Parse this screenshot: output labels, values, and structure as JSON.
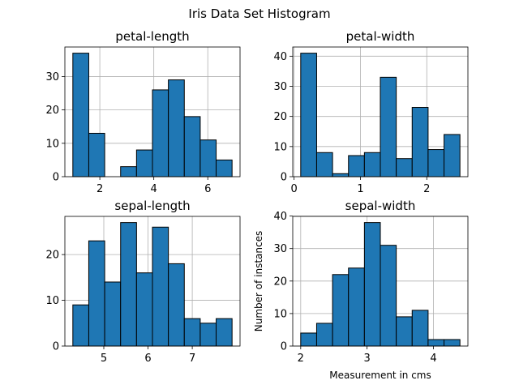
{
  "figure": {
    "title": "Iris Data Set Histogram",
    "bar_color": "#1f77b4",
    "edge_color": "#000000",
    "grid_color": "#b0b0b0",
    "grid": true
  },
  "chart_data": [
    {
      "type": "bar",
      "title": "petal-length",
      "xlabel": "",
      "ylabel": "",
      "bin_edges": [
        1.0,
        1.59,
        2.18,
        2.77,
        3.36,
        3.95,
        4.54,
        5.13,
        5.72,
        6.31,
        6.9
      ],
      "values": [
        37,
        13,
        0,
        3,
        8,
        26,
        29,
        18,
        11,
        5
      ],
      "xlim": [
        0.705,
        7.195
      ],
      "ylim": [
        0,
        38.85
      ],
      "xticks": [
        2,
        4,
        6
      ],
      "yticks": [
        0,
        10,
        20,
        30
      ]
    },
    {
      "type": "bar",
      "title": "petal-width",
      "xlabel": "",
      "ylabel": "",
      "bin_edges": [
        0.1,
        0.34,
        0.58,
        0.82,
        1.06,
        1.3,
        1.54,
        1.78,
        2.02,
        2.26,
        2.5
      ],
      "values": [
        41,
        8,
        1,
        7,
        8,
        33,
        6,
        23,
        9,
        14
      ],
      "xlim": [
        -0.02,
        2.62
      ],
      "ylim": [
        0,
        43.05
      ],
      "xticks": [
        0,
        1,
        2
      ],
      "yticks": [
        0,
        10,
        20,
        30,
        40
      ]
    },
    {
      "type": "bar",
      "title": "sepal-length",
      "xlabel": "",
      "ylabel": "",
      "bin_edges": [
        4.3,
        4.66,
        5.02,
        5.38,
        5.74,
        6.1,
        6.46,
        6.82,
        7.18,
        7.54,
        7.9
      ],
      "values": [
        9,
        23,
        14,
        27,
        16,
        26,
        18,
        6,
        5,
        6
      ],
      "xlim": [
        4.12,
        8.08
      ],
      "ylim": [
        0,
        28.35
      ],
      "xticks": [
        5,
        6,
        7
      ],
      "yticks": [
        0,
        10,
        20
      ]
    },
    {
      "type": "bar",
      "title": "sepal-width",
      "xlabel": "Measurement in cms",
      "ylabel": "Number of instances",
      "bin_edges": [
        2.0,
        2.24,
        2.48,
        2.72,
        2.96,
        3.2,
        3.44,
        3.68,
        3.92,
        4.16,
        4.4
      ],
      "values": [
        4,
        7,
        22,
        24,
        38,
        31,
        9,
        11,
        2,
        2
      ],
      "xlim": [
        1.88,
        4.52
      ],
      "ylim": [
        0,
        39.9
      ],
      "xticks": [
        2,
        3,
        4
      ],
      "yticks": [
        0,
        10,
        20,
        30,
        40
      ]
    }
  ]
}
